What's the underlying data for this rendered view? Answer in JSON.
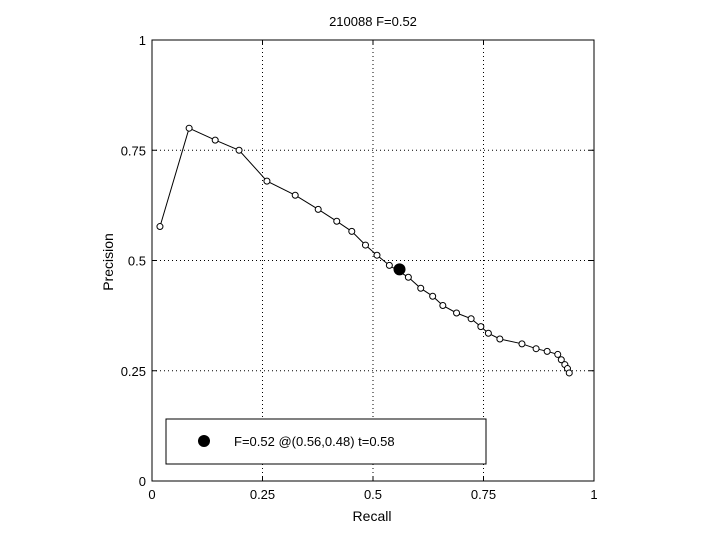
{
  "chart_data": {
    "type": "line",
    "title": "210088 F=0.52",
    "xlabel": "Recall",
    "ylabel": "Precision",
    "xlim": [
      0,
      1
    ],
    "ylim": [
      0,
      1
    ],
    "grid": true,
    "xticks": [
      0,
      0.25,
      0.5,
      0.75,
      1
    ],
    "xtick_labels": [
      "0",
      "0.25",
      "0.5",
      "0.75",
      "1"
    ],
    "yticks": [
      0,
      0.25,
      0.5,
      0.75,
      1
    ],
    "ytick_labels": [
      "0",
      "0.25",
      "0.5",
      "0.75",
      "1"
    ],
    "legend_position": "bottom-left",
    "series": [
      {
        "x": [
          0.018,
          0.084,
          0.143,
          0.197,
          0.26,
          0.324,
          0.376,
          0.418,
          0.452,
          0.483,
          0.509,
          0.537,
          0.58,
          0.608,
          0.635,
          0.658,
          0.689,
          0.722,
          0.744,
          0.761,
          0.787,
          0.837,
          0.869,
          0.894,
          0.918,
          0.926,
          0.934,
          0.94,
          0.944
        ],
        "y": [
          0.577,
          0.8,
          0.773,
          0.75,
          0.68,
          0.648,
          0.616,
          0.589,
          0.566,
          0.535,
          0.512,
          0.489,
          0.462,
          0.437,
          0.419,
          0.398,
          0.381,
          0.368,
          0.35,
          0.335,
          0.322,
          0.311,
          0.3,
          0.294,
          0.287,
          0.275,
          0.264,
          0.255,
          0.245
        ]
      }
    ],
    "highlight_point": {
      "x": 0.56,
      "y": 0.48
    },
    "legend_text": "F=0.52 @(0.56,0.48) t=0.58"
  }
}
